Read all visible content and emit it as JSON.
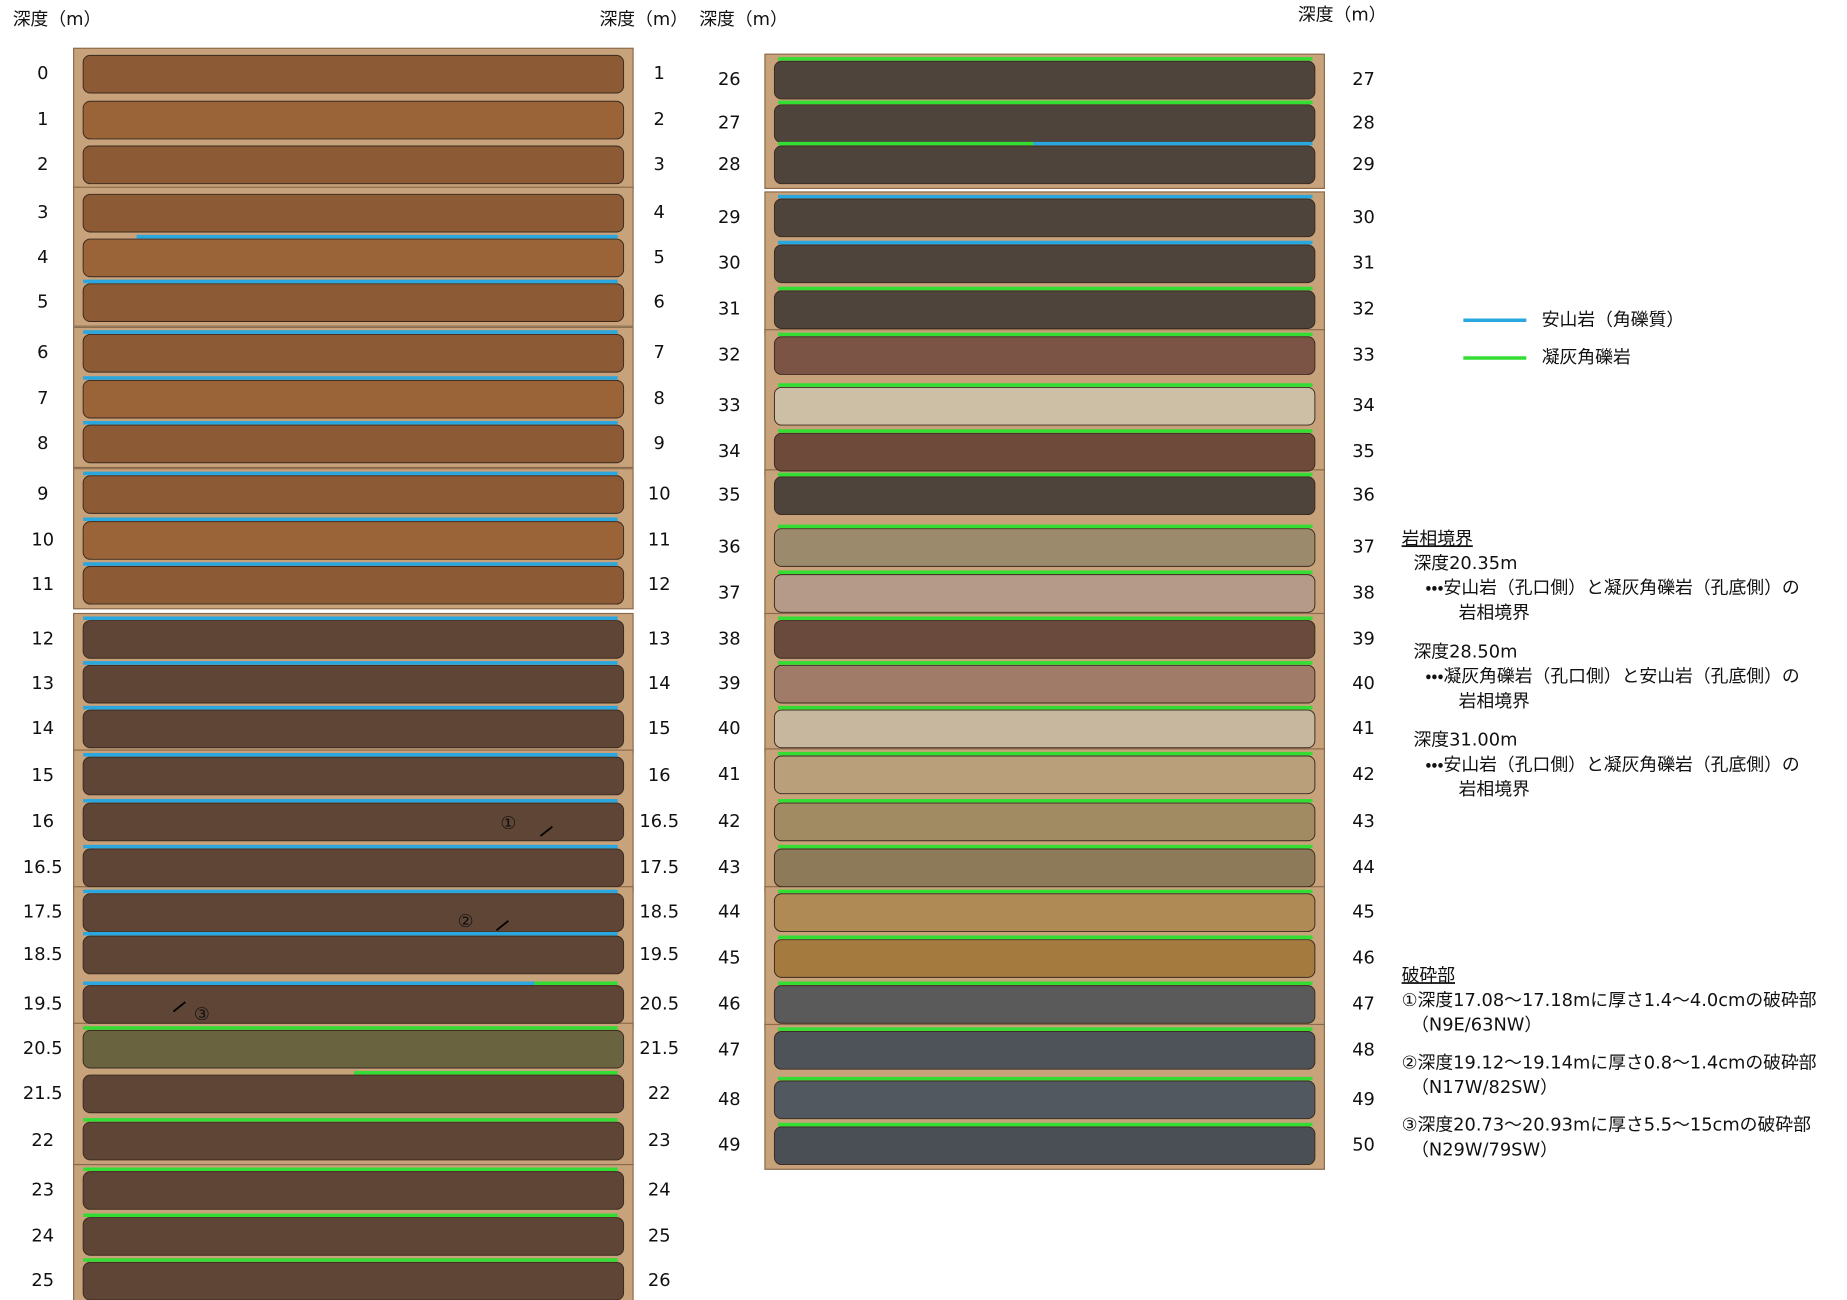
{
  "headers": [
    "深度（m）",
    "深度（m）",
    "深度（m）",
    "深度（m）"
  ],
  "left_column": {
    "depth_top": [
      "0",
      "1",
      "2",
      "3",
      "4",
      "5",
      "6",
      "7",
      "8",
      "9",
      "10",
      "11",
      "12",
      "13",
      "14",
      "15",
      "16",
      "16.5",
      "17.5",
      "18.5",
      "19.5",
      "20.5",
      "21.5",
      "22",
      "23",
      "24",
      "25"
    ],
    "depth_bottom": [
      "1",
      "2",
      "3",
      "4",
      "5",
      "6",
      "7",
      "8",
      "9",
      "10",
      "11",
      "12",
      "13",
      "14",
      "15",
      "16",
      "16.5",
      "17.5",
      "18.5",
      "19.5",
      "20.5",
      "21.5",
      "22",
      "23",
      "24",
      "25",
      "26"
    ]
  },
  "right_column": {
    "depth_top": [
      "26",
      "27",
      "28",
      "29",
      "30",
      "31",
      "32",
      "33",
      "34",
      "35",
      "36",
      "37",
      "38",
      "39",
      "40",
      "41",
      "42",
      "43",
      "44",
      "45",
      "46",
      "47",
      "48",
      "49"
    ],
    "depth_bottom": [
      "27",
      "28",
      "29",
      "30",
      "31",
      "32",
      "33",
      "34",
      "35",
      "36",
      "37",
      "38",
      "39",
      "40",
      "41",
      "42",
      "43",
      "44",
      "45",
      "46",
      "47",
      "48",
      "49",
      "50"
    ]
  },
  "legend": [
    {
      "label": "安山岩（角礫質）",
      "color": "#2aa7df"
    },
    {
      "label": "凝灰角礫岩",
      "color": "#33dd33"
    }
  ],
  "lithologic_boundaries": {
    "title": "岩相境界",
    "items": [
      {
        "depth": "深度20.35m",
        "lines": [
          "・・・安山岩（孔口側）と凝灰角礫岩（孔底側）の",
          "岩相境界"
        ]
      },
      {
        "depth": "深度28.50m",
        "lines": [
          "・・・凝灰角礫岩（孔口側）と安山岩（孔底側）の",
          "岩相境界"
        ]
      },
      {
        "depth": "深度31.00m",
        "lines": [
          "・・・安山岩（孔口側）と凝灰角礫岩（孔底側）の",
          "岩相境界"
        ]
      }
    ]
  },
  "fracture_zones": {
    "title": "破砕部",
    "items": [
      {
        "text": "①深度17.08～17.18mに厚さ1.4～4.0cmの破砕部",
        "orientation": "（N9E/63NW）"
      },
      {
        "text": "②深度19.12～19.14mに厚さ0.8～1.4cmの破砕部",
        "orientation": "（N17W/82SW）"
      },
      {
        "text": "③深度20.73～20.93mに厚さ5.5～15cmの破砕部",
        "orientation": "（N29W/79SW）"
      }
    ]
  },
  "markers": [
    "①",
    "②",
    "③"
  ]
}
